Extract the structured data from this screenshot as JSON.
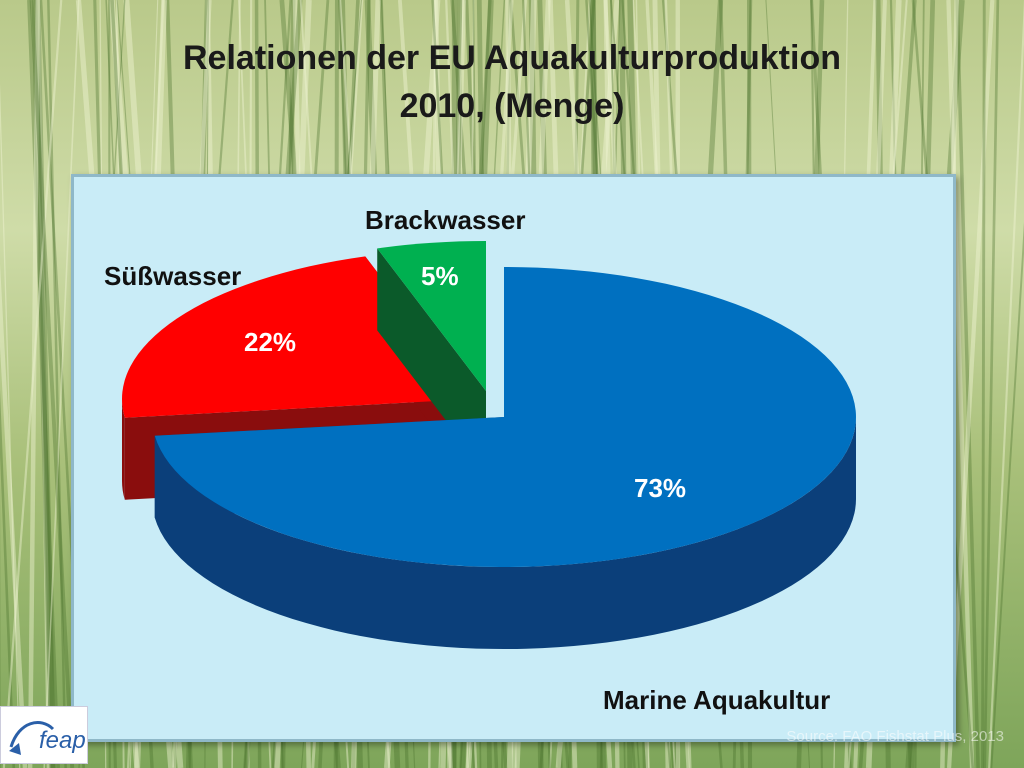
{
  "title_line1": "Relationen der EU Aquakulturproduktion",
  "title_line2": "2010, (Menge)",
  "logo": {
    "text": "feap"
  },
  "source": "Source: FAO Fishstat Plus, 2013",
  "chart_data": {
    "type": "pie",
    "style": "3d-exploded",
    "categories": [
      "Marine Aquakultur",
      "Süßwasser",
      "Brackwasser"
    ],
    "values": [
      73,
      22,
      5
    ],
    "value_labels": [
      "73%",
      "22%",
      "5%"
    ],
    "colors": [
      "#0070c0",
      "#ff0000",
      "#00b050"
    ],
    "legend": "none"
  }
}
